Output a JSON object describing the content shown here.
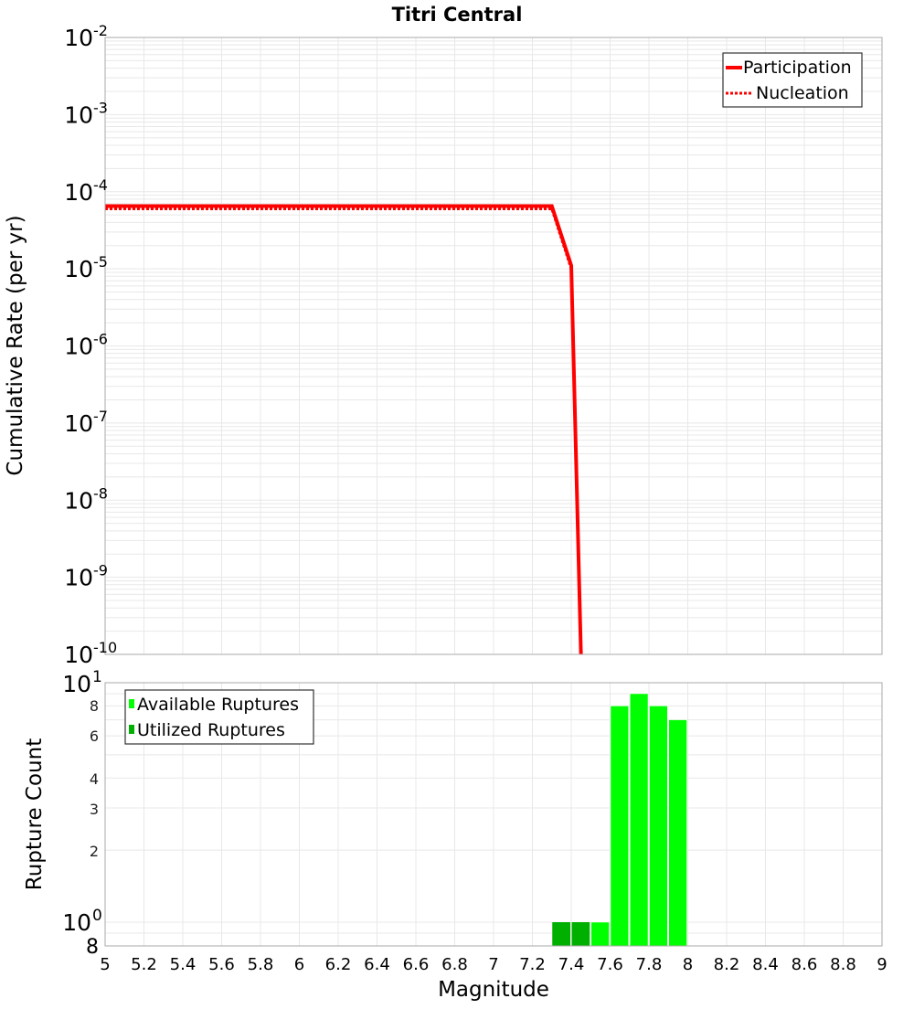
{
  "title": "Titri Central",
  "chart_data": [
    {
      "type": "line",
      "title": "Titri Central",
      "xlabel": "Magnitude",
      "ylabel": "Cumulative Rate (per yr)",
      "yscale": "log",
      "xlim": [
        5,
        9
      ],
      "ylim": [
        1e-10,
        0.01
      ],
      "grid": true,
      "legend_position": "top-right",
      "y_tick_labels": [
        "10^-2",
        "10^-3",
        "10^-4",
        "10^-5",
        "10^-6",
        "10^-7",
        "10^-8",
        "10^-9",
        "10^-10"
      ],
      "series": [
        {
          "name": "Participation",
          "style": "solid",
          "color": "#ff0000",
          "x": [
            5.0,
            7.3,
            7.4,
            7.45
          ],
          "y": [
            6.5e-05,
            6.5e-05,
            1.1e-05,
            1e-10
          ]
        },
        {
          "name": "Nucleation",
          "style": "dotted",
          "color": "#ff0000",
          "x": [
            5.0,
            7.3,
            7.4,
            7.45
          ],
          "y": [
            6e-05,
            6e-05,
            1e-05,
            1e-10
          ]
        }
      ]
    },
    {
      "type": "bar",
      "xlabel": "Magnitude",
      "ylabel": "Rupture Count",
      "yscale": "log",
      "xlim": [
        5,
        9
      ],
      "ylim": [
        0.8,
        10
      ],
      "grid": true,
      "legend_position": "top-left",
      "x_tick_labels": [
        "5",
        "5.2",
        "5.4",
        "5.6",
        "5.8",
        "6",
        "6.2",
        "6.4",
        "6.6",
        "6.8",
        "7",
        "7.2",
        "7.4",
        "7.6",
        "7.8",
        "8",
        "8.2",
        "8.4",
        "8.6",
        "8.8",
        "9"
      ],
      "y_tick_labels": [
        "8",
        "10^0",
        "2",
        "3",
        "4",
        "6",
        "8",
        "10^1"
      ],
      "categories": [
        7.35,
        7.45,
        7.55,
        7.65,
        7.75,
        7.85,
        7.95
      ],
      "series": [
        {
          "name": "Available Ruptures",
          "color": "#00ff00",
          "values": [
            1,
            1,
            1,
            8,
            9,
            8,
            7
          ]
        },
        {
          "name": "Utilized Ruptures",
          "color": "#00b000",
          "values": [
            1,
            1,
            0,
            0,
            0,
            0,
            0
          ]
        }
      ]
    }
  ],
  "top": {
    "ylabel": "Cumulative Rate (per yr)",
    "yticks": [
      {
        "base": "10",
        "exp": "-2"
      },
      {
        "base": "10",
        "exp": "-3"
      },
      {
        "base": "10",
        "exp": "-4"
      },
      {
        "base": "10",
        "exp": "-5"
      },
      {
        "base": "10",
        "exp": "-6"
      },
      {
        "base": "10",
        "exp": "-7"
      },
      {
        "base": "10",
        "exp": "-8"
      },
      {
        "base": "10",
        "exp": "-9"
      },
      {
        "base": "10",
        "exp": "-10"
      }
    ],
    "legend": [
      "Participation",
      "Nucleation"
    ]
  },
  "bottom": {
    "ylabel": "Rupture Count",
    "yticks_major": [
      {
        "base": "10",
        "exp": "1"
      },
      {
        "base": "10",
        "exp": "0"
      }
    ],
    "yticks_minor": [
      "8",
      "6",
      "4",
      "3",
      "2",
      "8"
    ],
    "legend": [
      "Available Ruptures",
      "Utilized Ruptures"
    ],
    "xlabel": "Magnitude",
    "xticks": [
      "5",
      "5.2",
      "5.4",
      "5.6",
      "5.8",
      "6",
      "6.2",
      "6.4",
      "6.6",
      "6.8",
      "7",
      "7.2",
      "7.4",
      "7.6",
      "7.8",
      "8",
      "8.2",
      "8.4",
      "8.6",
      "8.8",
      "9"
    ]
  }
}
